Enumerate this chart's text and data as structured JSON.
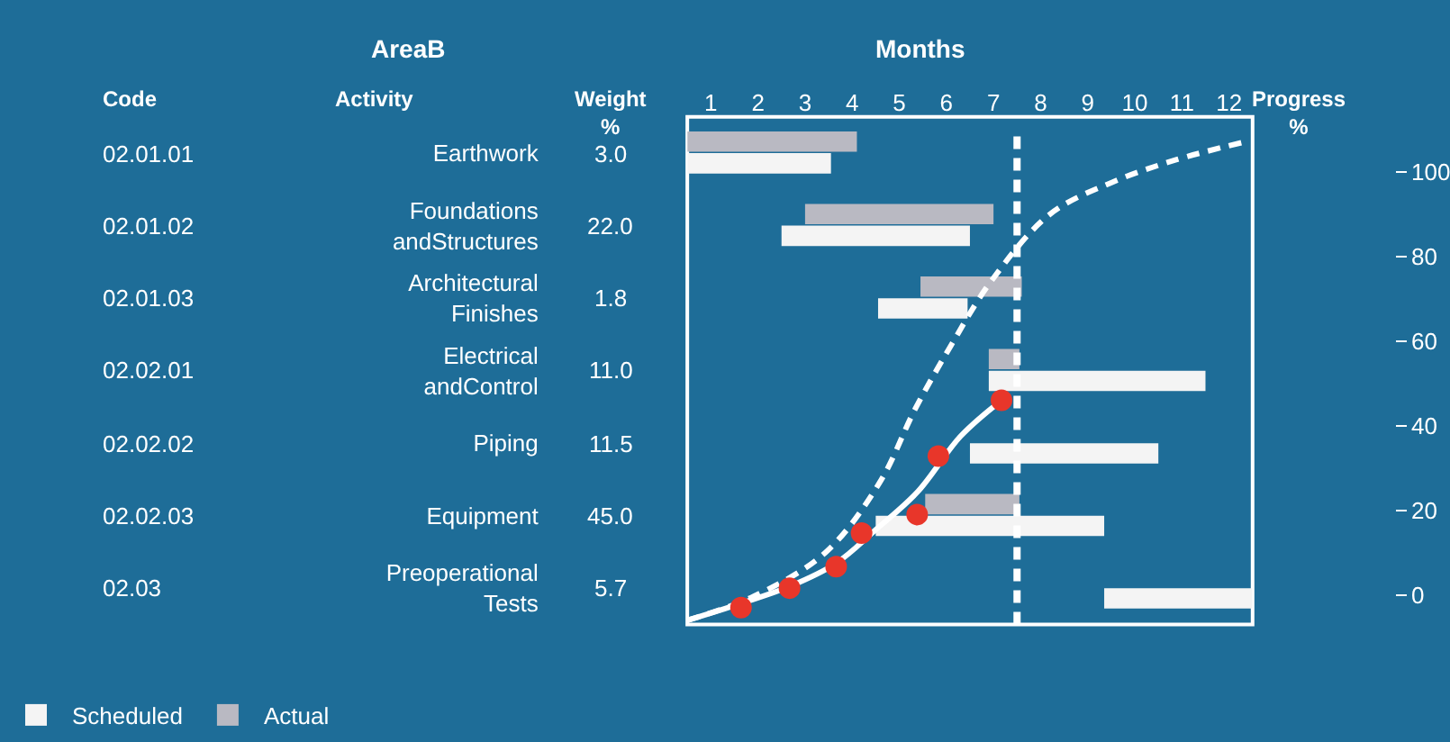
{
  "chart_data": [
    {
      "type": "bar",
      "orientation": "horizontal",
      "title": "Months",
      "annotations": [
        "AreaB",
        "Code",
        "Activity",
        "Weight\n%",
        "02.01.01",
        "02.01.02",
        "02.01.03",
        "02.02.01",
        "02.02.02",
        "02.02.03",
        "02.03",
        "3.0",
        "22.0",
        "1.8",
        "11.0",
        "11.5",
        "45.0",
        "5.7"
      ],
      "categories": [
        "Earthwork",
        "Foundations\nandStructures",
        "Architectural\nFinishes",
        "Electrical\nandControl",
        "Piping",
        "Equipment",
        "Preoperational\nTests"
      ],
      "series": [
        {
          "name": "Scheduled",
          "color": "#f4f4f4",
          "base": [
            0,
            2.0,
            4.05,
            6.4,
            6.0,
            4.0,
            8.85
          ],
          "values": [
            3.05,
            4.0,
            1.9,
            4.6,
            4.0,
            4.85,
            3.15
          ]
        },
        {
          "name": "Actual",
          "color": "#b9b9c2",
          "base": [
            0,
            2.5,
            4.95,
            6.4,
            null,
            5.05,
            null
          ],
          "values": [
            3.6,
            4.0,
            2.15,
            0.65,
            null,
            2.0,
            null
          ]
        }
      ],
      "xlim": [
        0,
        12
      ],
      "xticks": [
        {
          "value": 0.5,
          "label": "1"
        },
        {
          "value": 1.5,
          "label": "2"
        },
        {
          "value": 2.5,
          "label": "3"
        },
        {
          "value": 3.5,
          "label": "4"
        },
        {
          "value": 4.5,
          "label": "5"
        },
        {
          "value": 5.5,
          "label": "6"
        },
        {
          "value": 6.5,
          "label": "7"
        },
        {
          "value": 7.5,
          "label": "8"
        },
        {
          "value": 8.5,
          "label": "9"
        },
        {
          "value": 9.5,
          "label": "10"
        },
        {
          "value": 10.5,
          "label": "11"
        },
        {
          "value": 11.5,
          "label": "12"
        }
      ],
      "ref_lines": [
        {
          "axis": "x",
          "value": 7,
          "color": "#ffffff",
          "line_style": "dashed"
        }
      ],
      "grid": false,
      "legend": "bottom left"
    },
    {
      "type": "line",
      "ylabel": "Progress\n%",
      "tick_labels": "y",
      "series": [
        {
          "color": "#ffffff",
          "line_style": "dashed",
          "x": [
            0,
            1.4,
            2.93,
            4.08,
            4.84,
            5.6,
            6.44,
            7.7,
            9.03,
            10.36,
            11.8
          ],
          "values": [
            -6,
            -0.4,
            10,
            26.5,
            44,
            59,
            74,
            90,
            97.6,
            102.8,
            107
          ]
        },
        {
          "color": "#ffffff",
          "line_style": "solid",
          "x": [
            0,
            1.14,
            2.17,
            3.16,
            4.0,
            4.9,
            5.8,
            6.67
          ],
          "values": [
            -6,
            -2,
            2,
            7.5,
            15.4,
            24.5,
            37.5,
            46
          ]
        },
        {
          "type": "scatter",
          "color": "#e8362a",
          "marker": "circle",
          "x": [
            1.14,
            2.17,
            3.16,
            3.7,
            4.88,
            5.33,
            6.67
          ],
          "values": [
            -3,
            1.6,
            6.7,
            14.6,
            19,
            32.8,
            46
          ]
        }
      ],
      "xlim": [
        0,
        12
      ],
      "ylim": [
        -7,
        113
      ],
      "yticks": [
        0,
        20,
        40,
        60,
        80,
        100
      ],
      "grid": false
    }
  ]
}
